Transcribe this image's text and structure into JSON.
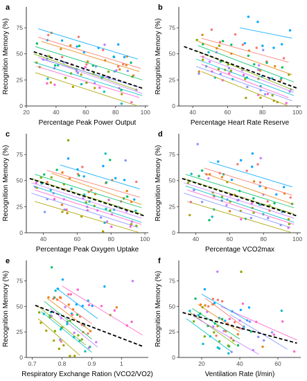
{
  "chart_data": [
    {
      "type": "scatter",
      "letter": "a",
      "xlabel": "Percentage Peak Power Output",
      "ylabel": "Recognition Memory (%)",
      "xlim": [
        20,
        102
      ],
      "ylim": [
        0,
        95
      ],
      "xticks": [
        20,
        40,
        60,
        80,
        100
      ],
      "yticks": [
        0,
        25,
        50,
        75
      ],
      "grid": false,
      "legend": "none",
      "pooled": {
        "x": [
          25,
          98
        ],
        "y": [
          52,
          17
        ]
      },
      "subjects": [
        {
          "color": "#00A9FF",
          "x": [
            28,
            95
          ],
          "y": [
            74,
            45
          ]
        },
        {
          "color": "#F8766D",
          "x": [
            28,
            97
          ],
          "y": [
            66,
            36
          ]
        },
        {
          "color": "#E68613",
          "x": [
            30,
            96
          ],
          "y": [
            62,
            33
          ]
        },
        {
          "color": "#00BE67",
          "x": [
            26,
            98
          ],
          "y": [
            57,
            25
          ]
        },
        {
          "color": "#7CAE00",
          "x": [
            25,
            95
          ],
          "y": [
            50,
            15
          ]
        },
        {
          "color": "#C77CFF",
          "x": [
            28,
            98
          ],
          "y": [
            47,
            12
          ]
        },
        {
          "color": "#00BFC4",
          "x": [
            25,
            98
          ],
          "y": [
            42,
            10
          ]
        },
        {
          "color": "#FF61CC",
          "x": [
            27,
            96
          ],
          "y": [
            38,
            8
          ]
        },
        {
          "color": "#8494FF",
          "x": [
            30,
            96
          ],
          "y": [
            45,
            18
          ]
        },
        {
          "color": "#ABA300",
          "x": [
            26,
            95
          ],
          "y": [
            32,
            0
          ]
        }
      ]
    },
    {
      "type": "scatter",
      "letter": "b",
      "xlabel": "Percentage Heart Rate Reserve",
      "ylabel": "Recognition Memory (%)",
      "xlim": [
        32,
        102
      ],
      "ylim": [
        0,
        95
      ],
      "xticks": [
        40,
        60,
        80,
        100
      ],
      "yticks": [
        0,
        25,
        50,
        75
      ],
      "grid": false,
      "legend": "none",
      "pooled": {
        "x": [
          35,
          100
        ],
        "y": [
          57,
          17
        ]
      },
      "subjects": [
        {
          "color": "#00A9FF",
          "x": [
            67,
            97
          ],
          "y": [
            75,
            65
          ]
        },
        {
          "color": "#F8766D",
          "x": [
            45,
            95
          ],
          "y": [
            65,
            42
          ]
        },
        {
          "color": "#E68613",
          "x": [
            43,
            97
          ],
          "y": [
            62,
            30
          ]
        },
        {
          "color": "#00BE67",
          "x": [
            43,
            98
          ],
          "y": [
            58,
            23
          ]
        },
        {
          "color": "#7CAE00",
          "x": [
            42,
            98
          ],
          "y": [
            53,
            15
          ]
        },
        {
          "color": "#C77CFF",
          "x": [
            44,
            98
          ],
          "y": [
            48,
            13
          ]
        },
        {
          "color": "#00BFC4",
          "x": [
            42,
            98
          ],
          "y": [
            45,
            10
          ]
        },
        {
          "color": "#FF61CC",
          "x": [
            45,
            95
          ],
          "y": [
            40,
            8
          ]
        },
        {
          "color": "#8494FF",
          "x": [
            42,
            97
          ],
          "y": [
            38,
            5
          ]
        },
        {
          "color": "#ABA300",
          "x": [
            45,
            95
          ],
          "y": [
            33,
            0
          ]
        }
      ]
    },
    {
      "type": "scatter",
      "letter": "c",
      "xlabel": "Percentage Peak Oxygen Uptake",
      "ylabel": "Recognition Memory (%)",
      "xlim": [
        30,
        102
      ],
      "ylim": [
        0,
        95
      ],
      "xticks": [
        40,
        60,
        80,
        100
      ],
      "yticks": [
        0,
        25,
        50,
        75
      ],
      "grid": false,
      "legend": "none",
      "pooled": {
        "x": [
          32,
          100
        ],
        "y": [
          52,
          16
        ]
      },
      "subjects": [
        {
          "color": "#00A9FF",
          "x": [
            50,
            97
          ],
          "y": [
            65,
            42
          ]
        },
        {
          "color": "#F8766D",
          "x": [
            42,
            97
          ],
          "y": [
            60,
            34
          ]
        },
        {
          "color": "#E68613",
          "x": [
            45,
            98
          ],
          "y": [
            57,
            27
          ]
        },
        {
          "color": "#00BE67",
          "x": [
            35,
            98
          ],
          "y": [
            56,
            24
          ]
        },
        {
          "color": "#7CAE00",
          "x": [
            33,
            98
          ],
          "y": [
            52,
            18
          ]
        },
        {
          "color": "#C77CFF",
          "x": [
            33,
            98
          ],
          "y": [
            48,
            14
          ]
        },
        {
          "color": "#00BFC4",
          "x": [
            34,
            98
          ],
          "y": [
            45,
            10
          ]
        },
        {
          "color": "#FF61CC",
          "x": [
            35,
            98
          ],
          "y": [
            41,
            8
          ]
        },
        {
          "color": "#8494FF",
          "x": [
            33,
            96
          ],
          "y": [
            38,
            5
          ]
        },
        {
          "color": "#ABA300",
          "x": [
            35,
            97
          ],
          "y": [
            30,
            0
          ]
        }
      ]
    },
    {
      "type": "scatter",
      "letter": "d",
      "xlabel": "Percentage VCO2max",
      "ylabel": "Recognition Memory (%)",
      "xlim": [
        30,
        102
      ],
      "ylim": [
        0,
        95
      ],
      "xticks": [
        40,
        60,
        80,
        100
      ],
      "yticks": [
        0,
        25,
        50,
        75
      ],
      "grid": false,
      "legend": "none",
      "pooled": {
        "x": [
          32,
          100
        ],
        "y": [
          52,
          16
        ]
      },
      "subjects": [
        {
          "color": "#00A9FF",
          "x": [
            48,
            97
          ],
          "y": [
            68,
            44
          ]
        },
        {
          "color": "#F8766D",
          "x": [
            45,
            97
          ],
          "y": [
            62,
            36
          ]
        },
        {
          "color": "#E68613",
          "x": [
            45,
            98
          ],
          "y": [
            57,
            27
          ]
        },
        {
          "color": "#00BE67",
          "x": [
            34,
            98
          ],
          "y": [
            56,
            24
          ]
        },
        {
          "color": "#7CAE00",
          "x": [
            33,
            98
          ],
          "y": [
            52,
            18
          ]
        },
        {
          "color": "#C77CFF",
          "x": [
            33,
            98
          ],
          "y": [
            48,
            14
          ]
        },
        {
          "color": "#00BFC4",
          "x": [
            34,
            98
          ],
          "y": [
            45,
            10
          ]
        },
        {
          "color": "#FF61CC",
          "x": [
            35,
            98
          ],
          "y": [
            41,
            8
          ]
        },
        {
          "color": "#8494FF",
          "x": [
            33,
            96
          ],
          "y": [
            38,
            5
          ]
        },
        {
          "color": "#ABA300",
          "x": [
            35,
            97
          ],
          "y": [
            30,
            0
          ]
        }
      ]
    },
    {
      "type": "scatter",
      "letter": "e",
      "xlabel": "Respiratory Exchange Ration (VCO2/VO2)",
      "ylabel": "Recognition Memory (%)",
      "xlim": [
        0.68,
        1.09
      ],
      "ylim": [
        0,
        95
      ],
      "xticks": [
        0.7,
        0.8,
        0.9,
        1.0
      ],
      "yticks": [
        0,
        25,
        50,
        75
      ],
      "grid": false,
      "legend": "none",
      "pooled": {
        "x": [
          0.71,
          1.07
        ],
        "y": [
          51,
          11
        ]
      },
      "subjects": [
        {
          "color": "#FF61CC",
          "x": [
            0.8,
            1.07
          ],
          "y": [
            70,
            22
          ]
        },
        {
          "color": "#00A9FF",
          "x": [
            0.78,
            0.92
          ],
          "y": [
            68,
            38
          ]
        },
        {
          "color": "#F8766D",
          "x": [
            0.77,
            0.9
          ],
          "y": [
            60,
            33
          ]
        },
        {
          "color": "#E68613",
          "x": [
            0.75,
            0.9
          ],
          "y": [
            58,
            25
          ]
        },
        {
          "color": "#00BE67",
          "x": [
            0.74,
            0.9
          ],
          "y": [
            55,
            18
          ]
        },
        {
          "color": "#7CAE00",
          "x": [
            0.72,
            0.88
          ],
          "y": [
            50,
            12
          ]
        },
        {
          "color": "#C77CFF",
          "x": [
            0.76,
            0.92
          ],
          "y": [
            48,
            10
          ]
        },
        {
          "color": "#00BFC4",
          "x": [
            0.73,
            0.9
          ],
          "y": [
            45,
            5
          ]
        },
        {
          "color": "#ABA300",
          "x": [
            0.72,
            0.86
          ],
          "y": [
            38,
            2
          ]
        }
      ]
    },
    {
      "type": "scatter",
      "letter": "f",
      "xlabel": "Ventilation Rate (l/min)",
      "ylabel": "Recognition Memory (%)",
      "xlim": [
        8,
        72
      ],
      "ylim": [
        0,
        95
      ],
      "xticks": [
        20,
        40,
        60
      ],
      "yticks": [
        0,
        25,
        50,
        75
      ],
      "grid": false,
      "legend": "none",
      "pooled": {
        "x": [
          10,
          70
        ],
        "y": [
          44,
          14
        ]
      },
      "subjects": [
        {
          "color": "#FF61CC",
          "x": [
            30,
            70
          ],
          "y": [
            50,
            17
          ]
        },
        {
          "color": "#00A9FF",
          "x": [
            20,
            45
          ],
          "y": [
            62,
            35
          ]
        },
        {
          "color": "#F8766D",
          "x": [
            22,
            42
          ],
          "y": [
            58,
            30
          ]
        },
        {
          "color": "#E68613",
          "x": [
            18,
            40
          ],
          "y": [
            52,
            25
          ]
        },
        {
          "color": "#00BE67",
          "x": [
            15,
            40
          ],
          "y": [
            48,
            18
          ]
        },
        {
          "color": "#7CAE00",
          "x": [
            14,
            38
          ],
          "y": [
            44,
            12
          ]
        },
        {
          "color": "#C77CFF",
          "x": [
            16,
            50
          ],
          "y": [
            40,
            3
          ]
        },
        {
          "color": "#00BFC4",
          "x": [
            12,
            36
          ],
          "y": [
            38,
            5
          ]
        },
        {
          "color": "#8494FF",
          "x": [
            35,
            65
          ],
          "y": [
            42,
            8
          ]
        }
      ]
    }
  ]
}
